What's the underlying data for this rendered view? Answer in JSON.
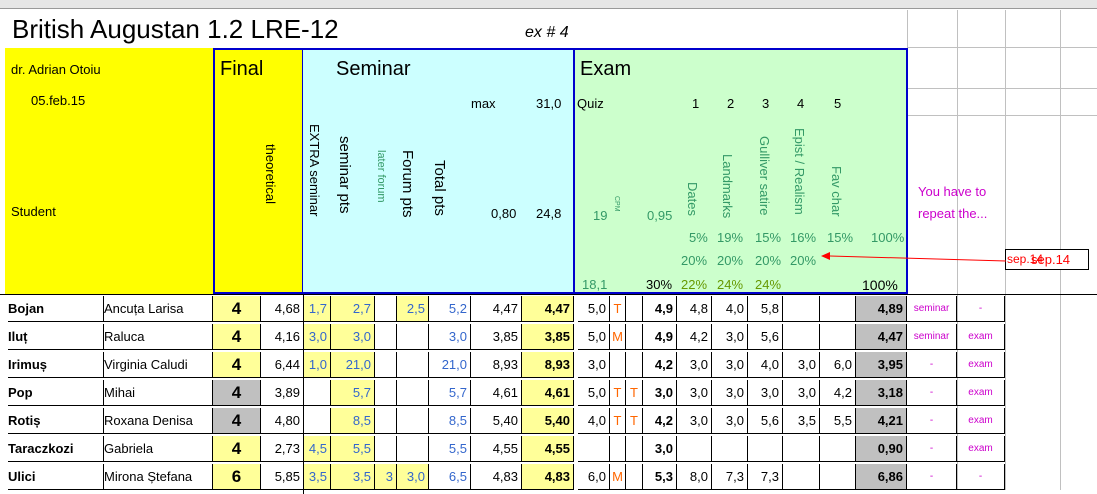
{
  "sheet": {
    "title": "British Augustan 1.2 LRE-12",
    "ex_no": "ex # 4",
    "teacher": "dr. Adrian Otoiu",
    "date": "05.feb.15",
    "student_label": "Student"
  },
  "sections": {
    "final": "Final",
    "seminar": "Seminar",
    "exam": "Exam"
  },
  "seminar_header": {
    "max_label": "max",
    "max_value": "31,0",
    "theoretical": "theoretical",
    "extra": "EXTRA seminar",
    "seminar_pts": "seminar pts",
    "later_forum": "later forum",
    "forum_pts": "Forum pts",
    "total_pts": "Total pts",
    "ratio": "0,80",
    "ratio_total": "24,8"
  },
  "exam_header": {
    "quiz": "Quiz",
    "nums": [
      "1",
      "2",
      "3",
      "4",
      "5"
    ],
    "q19": "19",
    "cpm": "CPM",
    "q095": "0,95",
    "topics": [
      "Dates",
      "Landmarks",
      "Gulliver satire",
      "Epist / Realism",
      "Fav char"
    ],
    "pct1": [
      "5%",
      "19%",
      "15%",
      "16%",
      "15%",
      "100%"
    ],
    "pct2": [
      "20%",
      "20%",
      "20%",
      "20%"
    ],
    "quiz_val": "18,1",
    "pct_quiz": "30%",
    "pct3": [
      "22%",
      "24%",
      "24%"
    ],
    "total_pct": "100%"
  },
  "note": {
    "repeat": "You have to repeat the...",
    "sep_box": "sep.14",
    "sep_label": "sep.14"
  },
  "students": [
    {
      "last": "Bojan",
      "first": "Ancuța Larisa",
      "final": "4",
      "theo": "4,68",
      "extra": "1,7",
      "sem": "2,7",
      "later": "",
      "forum": "2,5",
      "total": "5,2",
      "calc": "4,47",
      "grade": "4,47",
      "quiz": "5,0",
      "f1": "T",
      "f2": "",
      "qp": "4,9",
      "e1": "4,8",
      "e2": "4,0",
      "e3": "5,8",
      "e4": "",
      "e5": "",
      "exam": "4,89",
      "s1": "seminar",
      "s2": "-"
    },
    {
      "last": "Iluț",
      "first": "Raluca",
      "final": "4",
      "theo": "4,16",
      "extra": "3,0",
      "sem": "3,0",
      "later": "",
      "forum": "",
      "total": "3,0",
      "calc": "3,85",
      "grade": "3,85",
      "quiz": "5,0",
      "f1": "M",
      "f2": "",
      "qp": "4,9",
      "e1": "4,2",
      "e2": "3,0",
      "e3": "5,6",
      "e4": "",
      "e5": "",
      "exam": "4,47",
      "s1": "seminar",
      "s2": "exam"
    },
    {
      "last": "Irimuș",
      "first": "Virginia Caludi",
      "final": "4",
      "theo": "6,44",
      "extra": "1,0",
      "sem": "21,0",
      "later": "",
      "forum": "",
      "total": "21,0",
      "calc": "8,93",
      "grade": "8,93",
      "quiz": "3,0",
      "f1": "",
      "f2": "",
      "qp": "4,2",
      "e1": "3,0",
      "e2": "3,0",
      "e3": "4,0",
      "e4": "3,0",
      "e5": "6,0",
      "exam": "3,95",
      "s1": "-",
      "s2": "exam"
    },
    {
      "last": "Pop",
      "first": "Mihai",
      "final": "4",
      "theo": "3,89",
      "extra": "",
      "sem": "5,7",
      "later": "",
      "forum": "",
      "total": "5,7",
      "calc": "4,61",
      "grade": "4,61",
      "quiz": "5,0",
      "f1": "T",
      "f2": "T",
      "qp": "3,0",
      "e1": "3,0",
      "e2": "3,0",
      "e3": "3,0",
      "e4": "3,0",
      "e5": "4,2",
      "exam": "3,18",
      "s1": "-",
      "s2": "exam"
    },
    {
      "last": "Rotiș",
      "first": "Roxana Denisa",
      "final": "4",
      "theo": "4,80",
      "extra": "",
      "sem": "8,5",
      "later": "",
      "forum": "",
      "total": "8,5",
      "calc": "5,40",
      "grade": "5,40",
      "quiz": "4,0",
      "f1": "T",
      "f2": "T",
      "qp": "4,2",
      "e1": "3,0",
      "e2": "3,0",
      "e3": "5,6",
      "e4": "3,5",
      "e5": "5,5",
      "exam": "4,21",
      "s1": "-",
      "s2": "exam"
    },
    {
      "last": "Taraczkozi",
      "first": "Gabriela",
      "final": "4",
      "theo": "2,73",
      "extra": "4,5",
      "sem": "5,5",
      "later": "",
      "forum": "",
      "total": "5,5",
      "calc": "4,55",
      "grade": "4,55",
      "quiz": "",
      "f1": "",
      "f2": "",
      "qp": "3,0",
      "e1": "",
      "e2": "",
      "e3": "",
      "e4": "",
      "e5": "",
      "exam": "0,90",
      "s1": "-",
      "s2": "exam"
    },
    {
      "last": "Ulici",
      "first": "Mirona Ștefana",
      "final": "6",
      "theo": "5,85",
      "extra": "3,5",
      "sem": "3,5",
      "later": "3",
      "forum": "3,0",
      "total": "6,5",
      "calc": "4,83",
      "grade": "4,83",
      "quiz": "6,0",
      "f1": "M",
      "f2": "",
      "qp": "5,3",
      "e1": "8,0",
      "e2": "7,3",
      "e3": "7,3",
      "e4": "",
      "e5": "",
      "exam": "6,86",
      "s1": "-",
      "s2": "-"
    }
  ],
  "colors": {
    "final_bg": "#ffff00",
    "seminar_bg": "#ccffff",
    "exam_bg": "#ccffcc",
    "border_blue": "#0000cc",
    "grade_gray": "#c0c0c0"
  }
}
